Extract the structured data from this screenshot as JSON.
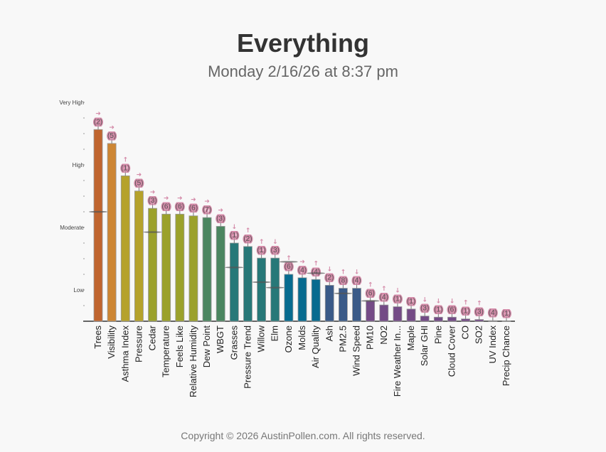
{
  "header": {
    "title": "Everything",
    "subtitle": "Monday 2/16/26 at 8:37 pm"
  },
  "footer": {
    "text": "Copyright © 2026 AustinPollen.com.  All rights reserved."
  },
  "chart_data": {
    "type": "bar",
    "title": "Everything",
    "subtitle": "Monday 2/16/26 at 8:37 pm",
    "xlabel": "",
    "ylabel": "",
    "ylim": [
      0,
      14
    ],
    "y_tick_labels": [
      {
        "label": "Low",
        "value": 2
      },
      {
        "label": "Moderate",
        "value": 6
      },
      {
        "label": "High",
        "value": 10
      },
      {
        "label": "Very High",
        "value": 14
      }
    ],
    "categories": [
      "Trees",
      "Visibility",
      "Asthma Index",
      "Pressure",
      "Cedar",
      "Temperature",
      "Feels Like",
      "Relative Humidity",
      "Dew Point",
      "WBGT",
      "Grasses",
      "Pressure Trend",
      "Willow",
      "Elm",
      "Ozone",
      "Molds",
      "Air Quality",
      "Ash",
      "PM2.5",
      "Wind Speed",
      "PM10",
      "NO2",
      "Fire Weather In...",
      "Maple",
      "Solar GHI",
      "Pine",
      "Cloud Cover",
      "CO",
      "SO2",
      "UV Index",
      "Precip Chance"
    ],
    "values": [
      12.26,
      11.37,
      9.3,
      8.33,
      7.22,
      6.85,
      6.85,
      6.74,
      6.63,
      6.07,
      5.0,
      4.78,
      4.04,
      4.04,
      3.0,
      2.78,
      2.67,
      2.3,
      2.11,
      2.11,
      1.3,
      1.04,
      0.93,
      0.78,
      0.33,
      0.26,
      0.26,
      0.15,
      0.11,
      0.04,
      0.0
    ],
    "counts": [
      "(2)",
      "(5)",
      "(1)",
      "(5)",
      "(3)",
      "(6)",
      "(6)",
      "(6)",
      "(7)",
      "(3)",
      "(1)",
      "(2)",
      "(1)",
      "(3)",
      "(6)",
      "(4)",
      "(4)",
      "(2)",
      "(8)",
      "(4)",
      "(6)",
      "(4)",
      "(1)",
      "(1)",
      "(3)",
      "(1)",
      "(6)",
      "(1)",
      "(3)",
      "(4)",
      "(1)"
    ],
    "trends": [
      "right",
      "right",
      "up",
      "right",
      "right",
      "right",
      "right",
      "right",
      "right",
      "right",
      "down",
      "up",
      "up",
      "down",
      "up",
      "right",
      "up",
      "down",
      "up",
      "down",
      "up",
      "up",
      "down",
      "none",
      "down",
      "down",
      "down",
      "up",
      "up",
      "none",
      "none"
    ],
    "averages": [
      7.0,
      null,
      null,
      null,
      5.7,
      null,
      null,
      null,
      null,
      null,
      3.44,
      null,
      2.5,
      2.15,
      3.8,
      null,
      3.07,
      null,
      1.78,
      null,
      1.3,
      null,
      null,
      null,
      null,
      null,
      null,
      null,
      null,
      null,
      null
    ],
    "colors": [
      "#c0652f",
      "#cd8634",
      "#b5a22c",
      "#b5a22c",
      "#9ba12b",
      "#9ba12b",
      "#9ba12b",
      "#9ba12b",
      "#4b8660",
      "#4b8660",
      "#277878",
      "#277878",
      "#277878",
      "#277878",
      "#076b8f",
      "#076b8f",
      "#076b8f",
      "#3a5a88",
      "#3a5a88",
      "#3a5a88",
      "#744b86",
      "#744b86",
      "#744b86",
      "#744b86",
      "#744b86",
      "#744b86",
      "#744b86",
      "#744b86",
      "#744b86",
      "#744b86",
      "#744b86"
    ],
    "annotation_color": "#d48aa8"
  }
}
